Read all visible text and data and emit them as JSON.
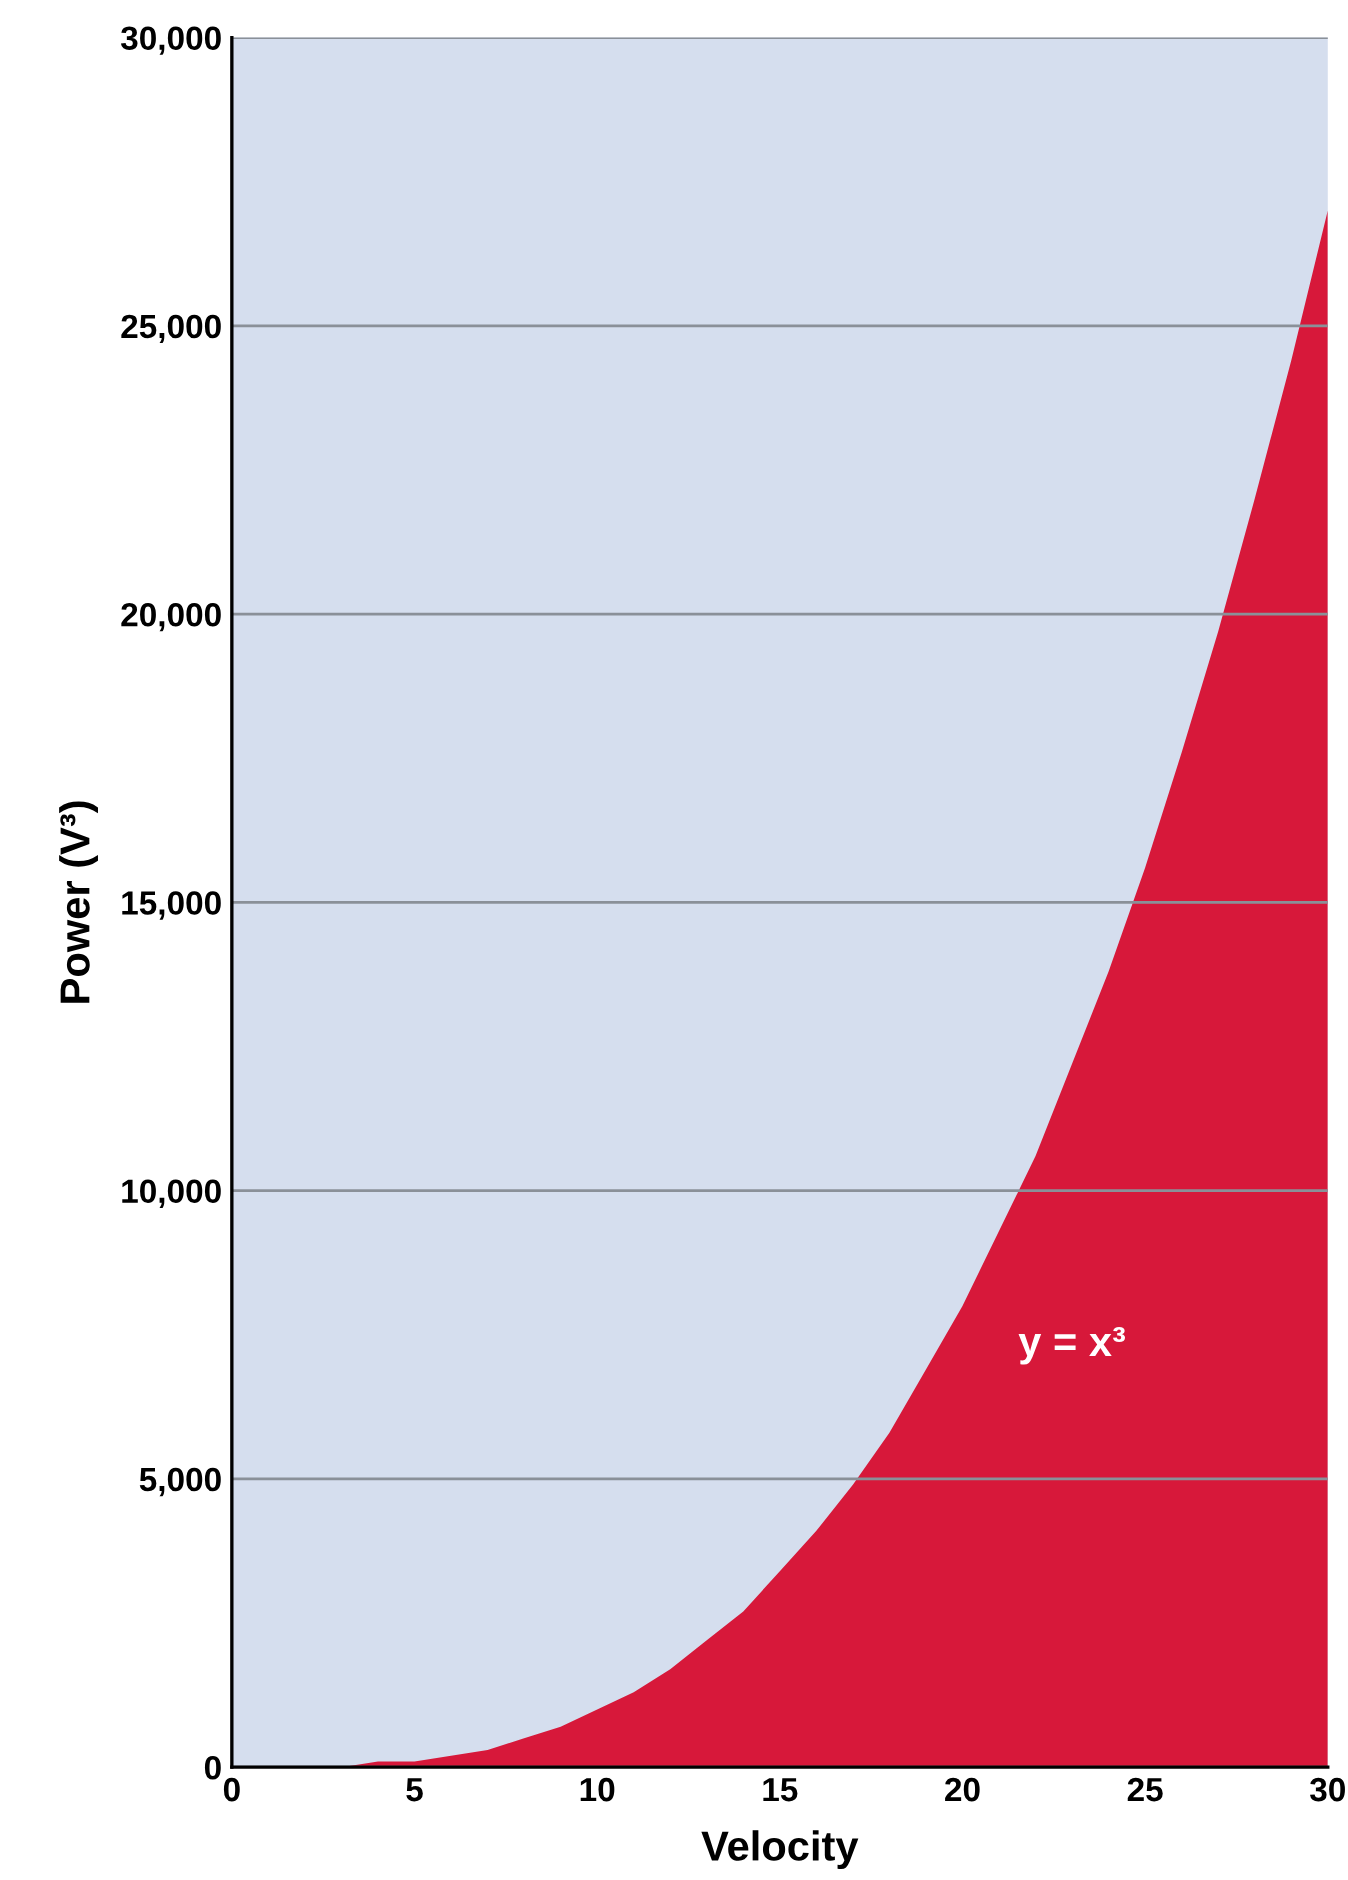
{
  "chart_data": {
    "type": "area",
    "xlabel": "Velocity",
    "ylabel": "Power (V³)",
    "x": [
      0,
      1,
      2,
      3,
      4,
      5,
      6,
      7,
      8,
      9,
      10,
      11,
      12,
      13,
      14,
      15,
      16,
      17,
      18,
      19,
      20,
      21,
      22,
      23,
      24,
      25,
      26,
      27,
      28,
      29,
      30
    ],
    "series": [
      {
        "name": "y = x³",
        "color": "#d7183a",
        "values": [
          0,
          0,
          0,
          0,
          100,
          100,
          200,
          300,
          500,
          700,
          1000,
          1300,
          1700,
          2200,
          2700,
          3400,
          4100,
          4900,
          5800,
          6900,
          8000,
          9300,
          10600,
          12200,
          13800,
          15600,
          17600,
          19700,
          22000,
          24400,
          27000
        ]
      }
    ],
    "xlim": [
      0,
      30
    ],
    "xticks": [
      0,
      5,
      10,
      15,
      20,
      25,
      30
    ],
    "ylim": [
      0,
      30000
    ],
    "yticks": [
      0,
      {
        "value": 5000,
        "label": "5,000"
      },
      {
        "value": 10000,
        "label": "10,000"
      },
      {
        "value": 15000,
        "label": "15,000"
      },
      {
        "value": 20000,
        "label": "20,000"
      },
      {
        "value": 25000,
        "label": "25,000"
      },
      {
        "value": 30000,
        "label": "30,000"
      }
    ],
    "grid": "y",
    "legend": false
  }
}
